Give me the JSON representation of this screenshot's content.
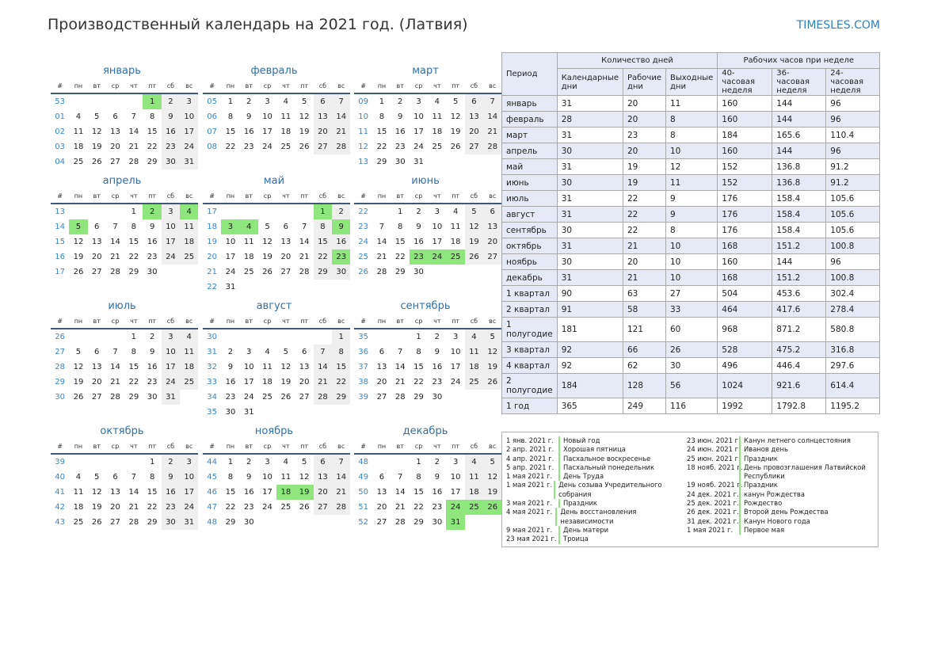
{
  "header": {
    "title": "Производственный календарь на 2021 год. (Латвия)",
    "brand": "TIMESLES.COM"
  },
  "weekday_headers": [
    "#",
    "пн",
    "вт",
    "ср",
    "чт",
    "пт",
    "сб",
    "вс"
  ],
  "months": [
    {
      "name": "январь",
      "weeks": [
        [
          "53",
          "",
          "",
          "",
          "",
          "1",
          "2",
          "3"
        ],
        [
          "01",
          "4",
          "5",
          "6",
          "7",
          "8",
          "9",
          "10"
        ],
        [
          "02",
          "11",
          "12",
          "13",
          "14",
          "15",
          "16",
          "17"
        ],
        [
          "03",
          "18",
          "19",
          "20",
          "21",
          "22",
          "23",
          "24"
        ],
        [
          "04",
          "25",
          "26",
          "27",
          "28",
          "29",
          "30",
          "31"
        ]
      ],
      "holidays": [
        "1"
      ]
    },
    {
      "name": "февраль",
      "weeks": [
        [
          "05",
          "1",
          "2",
          "3",
          "4",
          "5",
          "6",
          "7"
        ],
        [
          "06",
          "8",
          "9",
          "10",
          "11",
          "12",
          "13",
          "14"
        ],
        [
          "07",
          "15",
          "16",
          "17",
          "18",
          "19",
          "20",
          "21"
        ],
        [
          "08",
          "22",
          "23",
          "24",
          "25",
          "26",
          "27",
          "28"
        ]
      ],
      "holidays": []
    },
    {
      "name": "март",
      "weeks": [
        [
          "09",
          "1",
          "2",
          "3",
          "4",
          "5",
          "6",
          "7"
        ],
        [
          "10",
          "8",
          "9",
          "10",
          "11",
          "12",
          "13",
          "14"
        ],
        [
          "11",
          "15",
          "16",
          "17",
          "18",
          "19",
          "20",
          "21"
        ],
        [
          "12",
          "22",
          "23",
          "24",
          "25",
          "26",
          "27",
          "28"
        ],
        [
          "13",
          "29",
          "30",
          "31",
          "",
          "",
          "",
          ""
        ]
      ],
      "holidays": []
    },
    {
      "name": "апрель",
      "weeks": [
        [
          "13",
          "",
          "",
          "",
          "1",
          "2",
          "3",
          "4"
        ],
        [
          "14",
          "5",
          "6",
          "7",
          "8",
          "9",
          "10",
          "11"
        ],
        [
          "15",
          "12",
          "13",
          "14",
          "15",
          "16",
          "17",
          "18"
        ],
        [
          "16",
          "19",
          "20",
          "21",
          "22",
          "23",
          "24",
          "25"
        ],
        [
          "17",
          "26",
          "27",
          "28",
          "29",
          "30",
          "",
          ""
        ]
      ],
      "holidays": [
        "2",
        "4",
        "5"
      ]
    },
    {
      "name": "май",
      "weeks": [
        [
          "17",
          "",
          "",
          "",
          "",
          "",
          "1",
          "2"
        ],
        [
          "18",
          "3",
          "4",
          "5",
          "6",
          "7",
          "8",
          "9"
        ],
        [
          "19",
          "10",
          "11",
          "12",
          "13",
          "14",
          "15",
          "16"
        ],
        [
          "20",
          "17",
          "18",
          "19",
          "20",
          "21",
          "22",
          "23"
        ],
        [
          "21",
          "24",
          "25",
          "26",
          "27",
          "28",
          "29",
          "30"
        ],
        [
          "22",
          "31",
          "",
          "",
          "",
          "",
          "",
          ""
        ]
      ],
      "holidays": [
        "1",
        "3",
        "4",
        "9",
        "23"
      ]
    },
    {
      "name": "июнь",
      "weeks": [
        [
          "22",
          "",
          "1",
          "2",
          "3",
          "4",
          "5",
          "6"
        ],
        [
          "23",
          "7",
          "8",
          "9",
          "10",
          "11",
          "12",
          "13"
        ],
        [
          "24",
          "14",
          "15",
          "16",
          "17",
          "18",
          "19",
          "20"
        ],
        [
          "25",
          "21",
          "22",
          "23",
          "24",
          "25",
          "26",
          "27"
        ],
        [
          "26",
          "28",
          "29",
          "30",
          "",
          "",
          "",
          ""
        ]
      ],
      "holidays": [
        "23",
        "24",
        "25"
      ]
    },
    {
      "name": "июль",
      "weeks": [
        [
          "26",
          "",
          "",
          "",
          "1",
          "2",
          "3",
          "4"
        ],
        [
          "27",
          "5",
          "6",
          "7",
          "8",
          "9",
          "10",
          "11"
        ],
        [
          "28",
          "12",
          "13",
          "14",
          "15",
          "16",
          "17",
          "18"
        ],
        [
          "29",
          "19",
          "20",
          "21",
          "22",
          "23",
          "24",
          "25"
        ],
        [
          "30",
          "26",
          "27",
          "28",
          "29",
          "30",
          "31",
          ""
        ]
      ],
      "holidays": []
    },
    {
      "name": "август",
      "weeks": [
        [
          "30",
          "",
          "",
          "",
          "",
          "",
          "",
          "1"
        ],
        [
          "31",
          "2",
          "3",
          "4",
          "5",
          "6",
          "7",
          "8"
        ],
        [
          "32",
          "9",
          "10",
          "11",
          "12",
          "13",
          "14",
          "15"
        ],
        [
          "33",
          "16",
          "17",
          "18",
          "19",
          "20",
          "21",
          "22"
        ],
        [
          "34",
          "23",
          "24",
          "25",
          "26",
          "27",
          "28",
          "29"
        ],
        [
          "35",
          "30",
          "31",
          "",
          "",
          "",
          "",
          ""
        ]
      ],
      "holidays": []
    },
    {
      "name": "сентябрь",
      "weeks": [
        [
          "35",
          "",
          "",
          "1",
          "2",
          "3",
          "4",
          "5"
        ],
        [
          "36",
          "6",
          "7",
          "8",
          "9",
          "10",
          "11",
          "12"
        ],
        [
          "37",
          "13",
          "14",
          "15",
          "16",
          "17",
          "18",
          "19"
        ],
        [
          "38",
          "20",
          "21",
          "22",
          "23",
          "24",
          "25",
          "26"
        ],
        [
          "39",
          "27",
          "28",
          "29",
          "30",
          "",
          "",
          ""
        ]
      ],
      "holidays": []
    },
    {
      "name": "октябрь",
      "weeks": [
        [
          "39",
          "",
          "",
          "",
          "",
          "1",
          "2",
          "3"
        ],
        [
          "40",
          "4",
          "5",
          "6",
          "7",
          "8",
          "9",
          "10"
        ],
        [
          "41",
          "11",
          "12",
          "13",
          "14",
          "15",
          "16",
          "17"
        ],
        [
          "42",
          "18",
          "19",
          "20",
          "21",
          "22",
          "23",
          "24"
        ],
        [
          "43",
          "25",
          "26",
          "27",
          "28",
          "29",
          "30",
          "31"
        ]
      ],
      "holidays": []
    },
    {
      "name": "ноябрь",
      "weeks": [
        [
          "44",
          "1",
          "2",
          "3",
          "4",
          "5",
          "6",
          "7"
        ],
        [
          "45",
          "8",
          "9",
          "10",
          "11",
          "12",
          "13",
          "14"
        ],
        [
          "46",
          "15",
          "16",
          "17",
          "18",
          "19",
          "20",
          "21"
        ],
        [
          "47",
          "22",
          "23",
          "24",
          "25",
          "26",
          "27",
          "28"
        ],
        [
          "48",
          "29",
          "30",
          "",
          "",
          "",
          "",
          ""
        ]
      ],
      "holidays": [
        "18",
        "19"
      ]
    },
    {
      "name": "декабрь",
      "weeks": [
        [
          "48",
          "",
          "",
          "1",
          "2",
          "3",
          "4",
          "5"
        ],
        [
          "49",
          "6",
          "7",
          "8",
          "9",
          "10",
          "11",
          "12"
        ],
        [
          "50",
          "13",
          "14",
          "15",
          "16",
          "17",
          "18",
          "19"
        ],
        [
          "51",
          "20",
          "21",
          "22",
          "23",
          "24",
          "25",
          "26"
        ],
        [
          "52",
          "27",
          "28",
          "29",
          "30",
          "31",
          "",
          ""
        ]
      ],
      "holidays": [
        "24",
        "25",
        "26",
        "31"
      ]
    }
  ],
  "summary": {
    "h_period": "Период",
    "h_days": "Количество дней",
    "h_hours": "Рабочих часов при неделе",
    "h_cal": "Календарные дни",
    "h_work": "Рабочие дни",
    "h_off": "Выходные дни",
    "h_40": "40-часовая неделя",
    "h_36": "36-часовая неделя",
    "h_24": "24-часовая неделя",
    "rows": [
      [
        "январь",
        "31",
        "20",
        "11",
        "160",
        "144",
        "96"
      ],
      [
        "февраль",
        "28",
        "20",
        "8",
        "160",
        "144",
        "96"
      ],
      [
        "март",
        "31",
        "23",
        "8",
        "184",
        "165.6",
        "110.4"
      ],
      [
        "апрель",
        "30",
        "20",
        "10",
        "160",
        "144",
        "96"
      ],
      [
        "май",
        "31",
        "19",
        "12",
        "152",
        "136.8",
        "91.2"
      ],
      [
        "июнь",
        "30",
        "19",
        "11",
        "152",
        "136.8",
        "91.2"
      ],
      [
        "июль",
        "31",
        "22",
        "9",
        "176",
        "158.4",
        "105.6"
      ],
      [
        "август",
        "31",
        "22",
        "9",
        "176",
        "158.4",
        "105.6"
      ],
      [
        "сентябрь",
        "30",
        "22",
        "8",
        "176",
        "158.4",
        "105.6"
      ],
      [
        "октябрь",
        "31",
        "21",
        "10",
        "168",
        "151.2",
        "100.8"
      ],
      [
        "ноябрь",
        "30",
        "20",
        "10",
        "160",
        "144",
        "96"
      ],
      [
        "декабрь",
        "31",
        "21",
        "10",
        "168",
        "151.2",
        "100.8"
      ],
      [
        "1 квартал",
        "90",
        "63",
        "27",
        "504",
        "453.6",
        "302.4"
      ],
      [
        "2 квартал",
        "91",
        "58",
        "33",
        "464",
        "417.6",
        "278.4"
      ],
      [
        "1 полугодие",
        "181",
        "121",
        "60",
        "968",
        "871.2",
        "580.8"
      ],
      [
        "3 квартал",
        "92",
        "66",
        "26",
        "528",
        "475.2",
        "316.8"
      ],
      [
        "4 квартал",
        "92",
        "62",
        "30",
        "496",
        "446.4",
        "297.6"
      ],
      [
        "2 полугодие",
        "184",
        "128",
        "56",
        "1024",
        "921.6",
        "614.4"
      ],
      [
        "1 год",
        "365",
        "249",
        "116",
        "1992",
        "1792.8",
        "1195.2"
      ]
    ]
  },
  "holidays_list": {
    "left": [
      [
        "1 янв. 2021 г.",
        "Новый год"
      ],
      [
        "2 апр. 2021 г.",
        "Хорошая пятница"
      ],
      [
        "4 апр. 2021 г.",
        "Пасхальное воскресенье"
      ],
      [
        "5 апр. 2021 г.",
        "Пасхальный понедельник"
      ],
      [
        "1 мая 2021 г.",
        "День Труда"
      ],
      [
        "1 мая 2021 г.",
        "День созыва Учредительного собрания"
      ],
      [
        "3 мая 2021 г.",
        "Праздник"
      ],
      [
        "4 мая 2021 г.",
        "День восстановления независимости"
      ],
      [
        "9 мая 2021 г.",
        "День матери"
      ],
      [
        "23 мая 2021 г.",
        "Троица"
      ]
    ],
    "right": [
      [
        "23 июн. 2021 г.",
        "Канун летнего солнцестояния"
      ],
      [
        "24 июн. 2021 г.",
        "Иванов день"
      ],
      [
        "25 июн. 2021 г.",
        "Праздник"
      ],
      [
        "18 нояб. 2021 г.",
        "День провозглашения Латвийской Республики"
      ],
      [
        "19 нояб. 2021 г.",
        "Праздник"
      ],
      [
        "24 дек. 2021 г.",
        "канун Рождества"
      ],
      [
        "25 дек. 2021 г.",
        "Рождество"
      ],
      [
        "26 дек. 2021 г.",
        "Второй день Рождества"
      ],
      [
        "31 дек. 2021 г.",
        "Канун Нового года"
      ],
      [
        "1 мая 2021 г.",
        "Первое мая"
      ]
    ]
  }
}
